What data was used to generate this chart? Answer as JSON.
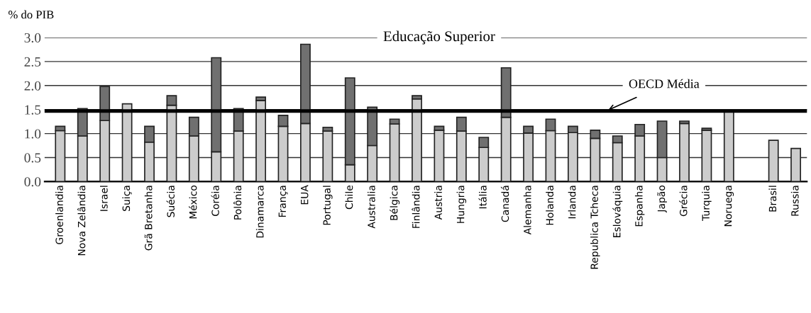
{
  "chart_data": {
    "type": "bar",
    "stacked": true,
    "title": "Educação Superior",
    "ylabel": "% do PIB",
    "categories": [
      "Groenlandia",
      "Nova Zelândia",
      "Israel",
      "Suiça",
      "Grã Bretanha",
      "Suécia",
      "México",
      "Coréia",
      "Polônia",
      "Dinamarca",
      "França",
      "EUA",
      "Portugal",
      "Chile",
      "Australia",
      "Bélgica",
      "Finlândia",
      "Austria",
      "Hungria",
      "Itália",
      "Canadá",
      "Alemanha",
      "Holanda",
      "Irlanda",
      "Republica Tcheca",
      "Eslováquia",
      "Espanha",
      "Japão",
      "Grécia",
      "Turquia",
      "Noruega",
      null,
      "Brasil",
      "Russia"
    ],
    "series": [
      {
        "color": "#cccccc",
        "values": [
          1.06,
          0.95,
          1.27,
          1.62,
          0.82,
          1.59,
          0.95,
          0.62,
          1.05,
          1.69,
          1.15,
          1.21,
          1.05,
          0.35,
          0.75,
          1.2,
          1.72,
          1.07,
          1.05,
          0.71,
          1.34,
          1.01,
          1.06,
          1.02,
          0.9,
          0.81,
          0.95,
          0.5,
          1.21,
          1.07,
          1.46,
          null,
          0.86,
          0.69
        ]
      },
      {
        "color": "#707070",
        "values": [
          0.09,
          0.57,
          0.71,
          null,
          0.33,
          0.2,
          0.39,
          1.96,
          0.47,
          0.07,
          0.23,
          1.65,
          0.08,
          1.81,
          0.8,
          0.1,
          0.07,
          0.08,
          0.29,
          0.21,
          1.03,
          0.14,
          0.24,
          0.13,
          0.17,
          0.14,
          0.24,
          0.76,
          0.05,
          0.04,
          null,
          null,
          null,
          null
        ]
      }
    ],
    "ylim": [
      0,
      3.0
    ],
    "yticks": [
      {
        "value": 0,
        "label": "0.0"
      },
      {
        "value": 0.5,
        "label": "0.5"
      },
      {
        "value": 1.0,
        "label": "1.0"
      },
      {
        "value": 1.5,
        "label": "1.5"
      },
      {
        "value": 2.0,
        "label": "2.0"
      },
      {
        "value": 2.5,
        "label": "2.5"
      },
      {
        "value": 3.0,
        "label": "3.0"
      }
    ],
    "grid": "y",
    "ref_lines": [
      {
        "axis": "y",
        "value": 1.47,
        "label": "OECD Média",
        "color": "#000000",
        "line_style": "solid"
      }
    ]
  }
}
